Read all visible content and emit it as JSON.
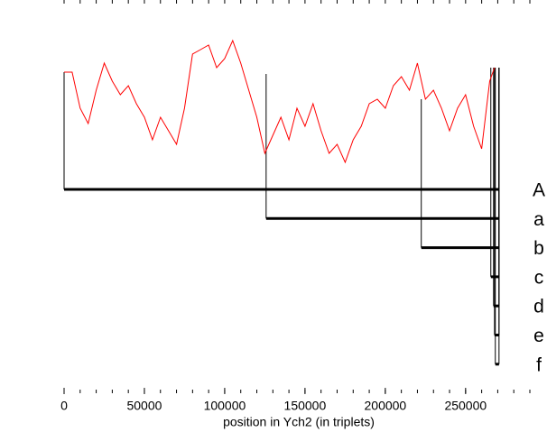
{
  "chart_data": {
    "type": "line",
    "xlabel": "position in Ych2 (in triplets)",
    "xlim": [
      0,
      290000
    ],
    "ylim": [
      0,
      170
    ],
    "xticks": [
      0,
      50000,
      100000,
      150000,
      200000,
      250000
    ],
    "minor_xticks": [
      0,
      10000,
      20000,
      30000,
      40000,
      50000,
      60000,
      70000,
      80000,
      90000,
      100000,
      110000,
      120000,
      130000,
      140000,
      150000,
      160000,
      170000,
      180000,
      190000,
      200000,
      210000,
      220000,
      230000,
      240000,
      250000,
      260000,
      270000,
      280000,
      290000
    ],
    "series": [
      {
        "color": "#ff0000",
        "x": [
          0,
          5000,
          10000,
          15000,
          20000,
          25000,
          30000,
          35000,
          40000,
          45000,
          50000,
          55000,
          60000,
          65000,
          70000,
          75000,
          80000,
          85000,
          90000,
          95000,
          100000,
          105000,
          110000,
          115000,
          120000,
          125000,
          130000,
          135000,
          140000,
          145000,
          150000,
          155000,
          160000,
          165000,
          170000,
          175000,
          180000,
          185000,
          190000,
          195000,
          200000,
          205000,
          210000,
          215000,
          220000,
          225000,
          230000,
          235000,
          240000,
          245000,
          250000,
          255000,
          260000,
          265000,
          268000
        ],
        "values": [
          120,
          120,
          80,
          63,
          100,
          130,
          110,
          95,
          105,
          85,
          70,
          45,
          70,
          55,
          40,
          80,
          140,
          145,
          150,
          125,
          135,
          155,
          130,
          100,
          70,
          30,
          50,
          70,
          45,
          80,
          60,
          85,
          55,
          30,
          40,
          20,
          45,
          60,
          85,
          90,
          80,
          105,
          115,
          100,
          130,
          90,
          100,
          80,
          55,
          80,
          95,
          60,
          35,
          110,
          125
        ]
      }
    ],
    "intervals": [
      {
        "label": "A",
        "start": 0,
        "end": 270800,
        "top": 120
      },
      {
        "label": "a",
        "start": 125800,
        "end": 270800,
        "top": 118
      },
      {
        "label": "b",
        "start": 222400,
        "end": 270800,
        "top": 90
      },
      {
        "label": "c",
        "start": 265700,
        "end": 270800,
        "top": 125
      },
      {
        "label": "d",
        "start": 267400,
        "end": 270800,
        "top": 125
      },
      {
        "label": "e",
        "start": 268000,
        "end": 270800,
        "top": 125
      },
      {
        "label": "f",
        "start": 268500,
        "end": 270800,
        "top": 125
      }
    ]
  }
}
